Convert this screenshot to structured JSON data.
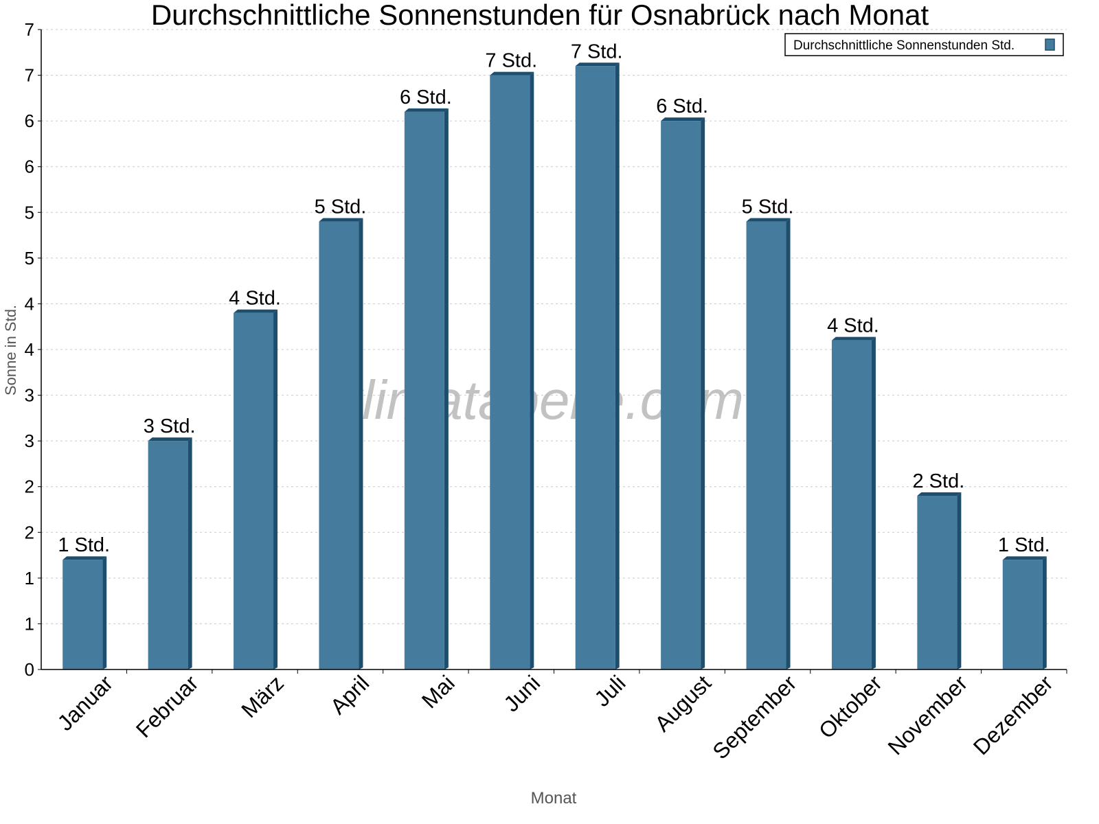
{
  "chart_data": {
    "type": "bar",
    "title": "Durchschnittliche Sonnenstunden für Osnabrück nach Monat",
    "xlabel": "Monat",
    "ylabel": "Sonne in Std.",
    "watermark": "klimatabelle.com",
    "legend": {
      "entry": "Durchschnittliche Sonnenstunden Std.",
      "position": "top-right"
    },
    "categories": [
      "Januar",
      "Februar",
      "März",
      "April",
      "Mai",
      "Juni",
      "Juli",
      "August",
      "September",
      "Oktober",
      "November",
      "Dezember"
    ],
    "values": [
      1.2,
      2.5,
      3.9,
      4.9,
      6.1,
      6.5,
      6.6,
      6.0,
      4.9,
      3.6,
      1.9,
      1.2
    ],
    "data_labels": [
      "1 Std.",
      "3 Std.",
      "4 Std.",
      "5 Std.",
      "6 Std.",
      "7 Std.",
      "7 Std.",
      "6 Std.",
      "5 Std.",
      "4 Std.",
      "2 Std.",
      "1 Std."
    ],
    "ylim": [
      0,
      7
    ],
    "yticks": [
      0,
      0.5,
      1,
      1.5,
      2,
      2.5,
      3,
      3.5,
      4,
      4.5,
      5,
      5.5,
      6,
      6.5,
      7
    ],
    "ytick_labels": [
      "0",
      "1",
      "1",
      "2",
      "2",
      "3",
      "3",
      "4",
      "4",
      "5",
      "5",
      "6",
      "6",
      "7",
      "7"
    ],
    "grid": true,
    "colors": {
      "bar": "#457b9d",
      "bar_side": "#1d4e6e",
      "grid": "#c8c8c8",
      "watermark": "#b4b4b4"
    }
  }
}
